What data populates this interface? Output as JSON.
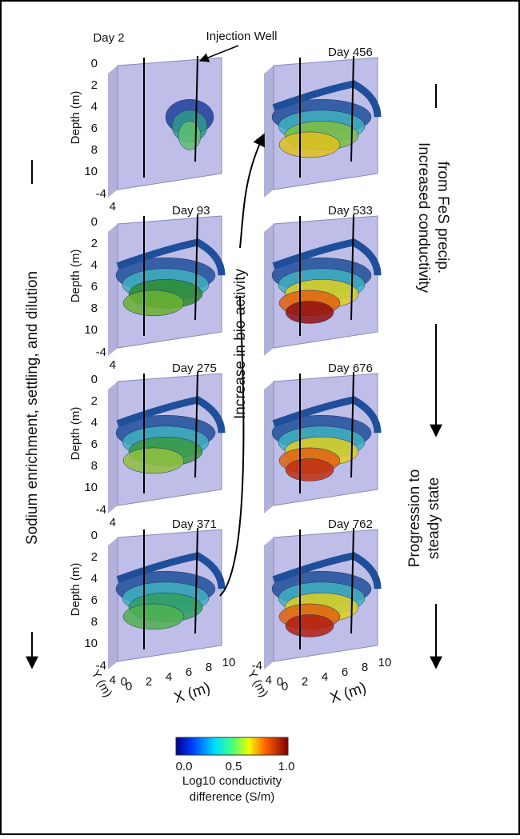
{
  "annotations": {
    "injection_well": "Injection Well",
    "left_arrow": "Sodium enrichment, settling, and dilution",
    "middle_arrow": "Increase in bio-activity",
    "right_top": [
      "Increased conductivity",
      "from FeS precip."
    ],
    "right_bottom": [
      "Progression to",
      "steady state"
    ]
  },
  "panels": [
    {
      "label": "Day 2"
    },
    {
      "label": "Day 93"
    },
    {
      "label": "Day 275"
    },
    {
      "label": "Day 371"
    },
    {
      "label": "Day 456"
    },
    {
      "label": "Day 533"
    },
    {
      "label": "Day 676"
    },
    {
      "label": "Day 762"
    }
  ],
  "axes": {
    "depth_label": "Depth (m)",
    "depth_ticks": [
      "0",
      "2",
      "4",
      "6",
      "8",
      "10"
    ],
    "y_label": "Y (m)",
    "y_ticks": [
      "-4",
      "0",
      "4"
    ],
    "x_label": "X (m)",
    "x_ticks": [
      "0",
      "2",
      "4",
      "6",
      "8",
      "10"
    ]
  },
  "colorbar": {
    "ticks": [
      "0.0",
      "0.5",
      "1.0"
    ],
    "label": [
      "Log10 conductivity",
      "difference (S/m)"
    ]
  }
}
